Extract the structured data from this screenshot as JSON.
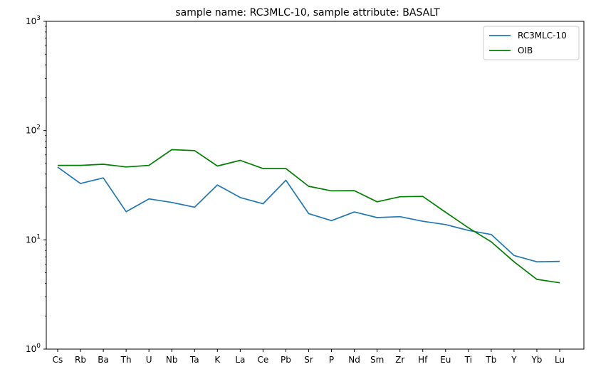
{
  "chart_data": {
    "type": "line",
    "title": "sample name: RC3MLC-10, sample attribute: BASALT",
    "xlabel": "",
    "ylabel": "",
    "yscale": "log",
    "ylim": [
      1,
      1000
    ],
    "y_ticks": [
      {
        "value": 1,
        "base": "10",
        "exp": "0"
      },
      {
        "value": 10,
        "base": "10",
        "exp": "1"
      },
      {
        "value": 100,
        "base": "10",
        "exp": "2"
      },
      {
        "value": 1000,
        "base": "10",
        "exp": "3"
      }
    ],
    "categories": [
      "Cs",
      "Rb",
      "Ba",
      "Th",
      "U",
      "Nb",
      "Ta",
      "K",
      "La",
      "Ce",
      "Pb",
      "Sr",
      "P",
      "Nd",
      "Sm",
      "Zr",
      "Hf",
      "Eu",
      "Ti",
      "Tb",
      "Y",
      "Yb",
      "Lu"
    ],
    "series": [
      {
        "name": "RC3MLC-10",
        "color": "#1f77b4",
        "values": [
          46.3,
          32.8,
          36.9,
          18.1,
          23.7,
          22.0,
          19.9,
          31.8,
          24.4,
          21.4,
          35.1,
          17.4,
          15.0,
          18.0,
          16.0,
          16.3,
          14.8,
          13.8,
          12.2,
          11.2,
          7.2,
          6.3,
          6.35
        ]
      },
      {
        "name": "OIB",
        "color": "#008000",
        "values": [
          48.0,
          48.0,
          49.2,
          46.5,
          48.0,
          66.9,
          65.6,
          47.4,
          53.4,
          44.9,
          44.9,
          30.9,
          28.1,
          28.2,
          22.3,
          24.8,
          25.0,
          17.9,
          12.9,
          9.6,
          6.3,
          4.35,
          4.05
        ]
      }
    ],
    "legend": {
      "position": "top-right",
      "entries": [
        "RC3MLC-10",
        "OIB"
      ]
    },
    "grid": false
  }
}
